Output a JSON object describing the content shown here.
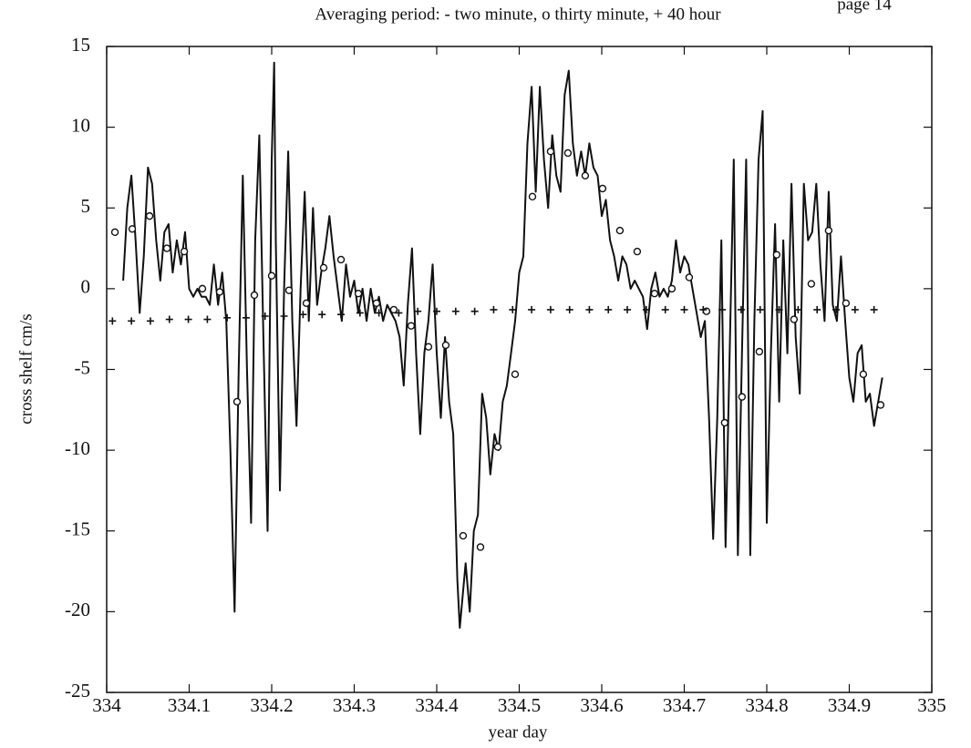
{
  "page_label": "page 14",
  "chart_data": {
    "type": "line",
    "title": "Averaging period: - two minute, o thirty minute, + 40 hour",
    "xlabel": "year day",
    "ylabel": "cross shelf cm/s",
    "xlim": [
      334,
      335
    ],
    "ylim": [
      -25,
      15
    ],
    "xticks": [
      334,
      334.1,
      334.2,
      334.3,
      334.4,
      334.5,
      334.6,
      334.7,
      334.8,
      334.9,
      335
    ],
    "yticks": [
      15,
      10,
      5,
      0,
      -5,
      -10,
      -15,
      -20,
      -25
    ],
    "series": [
      {
        "name": "two minute",
        "color": "#111111",
        "marker": "line",
        "x": [
          334.02,
          334.025,
          334.03,
          334.035,
          334.04,
          334.045,
          334.05,
          334.055,
          334.06,
          334.065,
          334.07,
          334.075,
          334.08,
          334.085,
          334.09,
          334.095,
          334.1,
          334.105,
          334.11,
          334.115,
          334.12,
          334.125,
          334.13,
          334.135,
          334.14,
          334.145,
          334.15,
          334.155,
          334.16,
          334.165,
          334.17,
          334.175,
          334.18,
          334.185,
          334.19,
          334.195,
          334.2,
          334.203,
          334.205,
          334.21,
          334.215,
          334.22,
          334.225,
          334.23,
          334.235,
          334.24,
          334.245,
          334.25,
          334.255,
          334.26,
          334.265,
          334.27,
          334.275,
          334.28,
          334.285,
          334.29,
          334.295,
          334.3,
          334.305,
          334.31,
          334.315,
          334.32,
          334.325,
          334.33,
          334.335,
          334.34,
          334.345,
          334.35,
          334.355,
          334.36,
          334.365,
          334.37,
          334.375,
          334.38,
          334.385,
          334.39,
          334.395,
          334.4,
          334.405,
          334.41,
          334.415,
          334.42,
          334.425,
          334.428,
          334.435,
          334.44,
          334.445,
          334.45,
          334.455,
          334.46,
          334.465,
          334.47,
          334.475,
          334.48,
          334.485,
          334.49,
          334.495,
          334.5,
          334.505,
          334.51,
          334.515,
          334.52,
          334.525,
          334.53,
          334.535,
          334.54,
          334.545,
          334.55,
          334.555,
          334.56,
          334.565,
          334.57,
          334.575,
          334.58,
          334.585,
          334.59,
          334.595,
          334.6,
          334.605,
          334.61,
          334.615,
          334.62,
          334.625,
          334.63,
          334.635,
          334.64,
          334.645,
          334.65,
          334.655,
          334.66,
          334.665,
          334.67,
          334.675,
          334.68,
          334.685,
          334.69,
          334.695,
          334.7,
          334.705,
          334.71,
          334.715,
          334.72,
          334.725,
          334.73,
          334.735,
          334.74,
          334.745,
          334.75,
          334.755,
          334.76,
          334.765,
          334.77,
          334.775,
          334.78,
          334.785,
          334.79,
          334.795,
          334.8,
          334.805,
          334.81,
          334.815,
          334.82,
          334.825,
          334.83,
          334.835,
          334.84,
          334.845,
          334.85,
          334.855,
          334.86,
          334.865,
          334.87,
          334.875,
          334.88,
          334.885,
          334.89,
          334.895,
          334.9,
          334.905,
          334.91,
          334.915,
          334.92,
          334.925,
          334.93,
          334.935,
          334.94
        ],
        "values": [
          0.5,
          5,
          7,
          3,
          -1.5,
          2,
          7.5,
          6.5,
          3,
          0.5,
          3.5,
          4,
          1,
          3,
          1.5,
          3.5,
          0,
          -0.5,
          0,
          -0.5,
          -0.5,
          -1,
          1.5,
          -1,
          1,
          -2,
          -10,
          -20,
          -5,
          7,
          -5,
          -14.5,
          3,
          9.5,
          -3,
          -15,
          8,
          14,
          3,
          -12.5,
          0,
          8.5,
          -2,
          -8.5,
          0,
          6,
          -2,
          5,
          -1,
          1,
          2.5,
          4.5,
          2,
          0,
          -2,
          1.5,
          -0.5,
          0.5,
          -1.5,
          0,
          -2,
          0,
          -1.5,
          -0.5,
          -2,
          -1,
          -1.5,
          -2,
          -3,
          -6,
          -1,
          2.5,
          -4,
          -9,
          -4,
          -2,
          1.5,
          -4,
          -8,
          -3,
          -7,
          -9,
          -18,
          -21,
          -17,
          -20,
          -15,
          -14,
          -6.5,
          -8,
          -11.5,
          -9,
          -10,
          -7,
          -6,
          -4,
          -2,
          1,
          2,
          9,
          12.5,
          6,
          12.5,
          8,
          5,
          9.5,
          7,
          6,
          12,
          13.5,
          9,
          7,
          8.5,
          7,
          9,
          7.5,
          7,
          4.5,
          5.5,
          3,
          2,
          0.5,
          2,
          1.5,
          0,
          0.5,
          0,
          -0.5,
          -2.5,
          0,
          1,
          -0.5,
          0,
          -0.5,
          0.5,
          3,
          1,
          2,
          1.5,
          0,
          -1.5,
          -3,
          -2,
          -8,
          -15.5,
          -8,
          3,
          -16,
          -4,
          8,
          -16.5,
          -4,
          8,
          -16.5,
          -2,
          8,
          11,
          -14.5,
          -4,
          4,
          -7,
          3,
          -4,
          6.5,
          -3,
          -6.5,
          6.5,
          3,
          3.5,
          6.5,
          1.5,
          -2,
          6,
          -1,
          -2,
          2,
          -2,
          -5.5,
          -7,
          -4,
          -3.5,
          -7,
          -6.5,
          -8.5,
          -7,
          -5.5
        ]
      },
      {
        "name": "thirty minute",
        "color": "#111111",
        "marker": "circle",
        "x": [
          334.01,
          334.031,
          334.052,
          334.073,
          334.094,
          334.116,
          334.137,
          334.158,
          334.179,
          334.2,
          334.221,
          334.242,
          334.263,
          334.284,
          334.305,
          334.327,
          334.348,
          334.369,
          334.39,
          334.411,
          334.432,
          334.453,
          334.474,
          334.495,
          334.516,
          334.538,
          334.559,
          334.58,
          334.601,
          334.622,
          334.643,
          334.664,
          334.685,
          334.706,
          334.727,
          334.749,
          334.77,
          334.791,
          334.812,
          334.833,
          334.854,
          334.875,
          334.896,
          334.917,
          334.938
        ],
        "values": [
          3.5,
          3.7,
          4.5,
          2.5,
          2.3,
          0,
          -0.2,
          -7,
          -0.4,
          0.8,
          -0.1,
          -0.9,
          1.3,
          1.8,
          -0.3,
          -0.9,
          -1.3,
          -2.3,
          -3.6,
          -3.5,
          -15.3,
          -16,
          -9.8,
          -5.3,
          5.7,
          8.5,
          8.4,
          7,
          6.2,
          3.6,
          2.3,
          -0.3,
          0,
          0.7,
          -1.4,
          -8.3,
          -6.7,
          -3.9,
          2.1,
          -1.9,
          0.3,
          3.6,
          -0.9,
          -5.3,
          -7.2
        ]
      },
      {
        "name": "40 hour",
        "color": "#111111",
        "marker": "plus",
        "x": [
          334.007,
          334.03,
          334.053,
          334.076,
          334.099,
          334.122,
          334.146,
          334.169,
          334.192,
          334.215,
          334.238,
          334.261,
          334.284,
          334.307,
          334.33,
          334.354,
          334.377,
          334.4,
          334.423,
          334.446,
          334.469,
          334.492,
          334.515,
          334.538,
          334.561,
          334.585,
          334.608,
          334.631,
          334.654,
          334.677,
          334.7,
          334.723,
          334.746,
          334.769,
          334.792,
          334.815,
          334.838,
          334.861,
          334.884,
          334.907,
          334.93
        ],
        "values": [
          -2,
          -2,
          -2,
          -1.9,
          -1.9,
          -1.9,
          -1.8,
          -1.8,
          -1.7,
          -1.7,
          -1.6,
          -1.6,
          -1.6,
          -1.5,
          -1.5,
          -1.5,
          -1.4,
          -1.4,
          -1.4,
          -1.4,
          -1.3,
          -1.3,
          -1.3,
          -1.3,
          -1.3,
          -1.3,
          -1.3,
          -1.3,
          -1.3,
          -1.3,
          -1.3,
          -1.3,
          -1.3,
          -1.3,
          -1.3,
          -1.3,
          -1.3,
          -1.3,
          -1.3,
          -1.3,
          -1.3
        ]
      }
    ]
  }
}
